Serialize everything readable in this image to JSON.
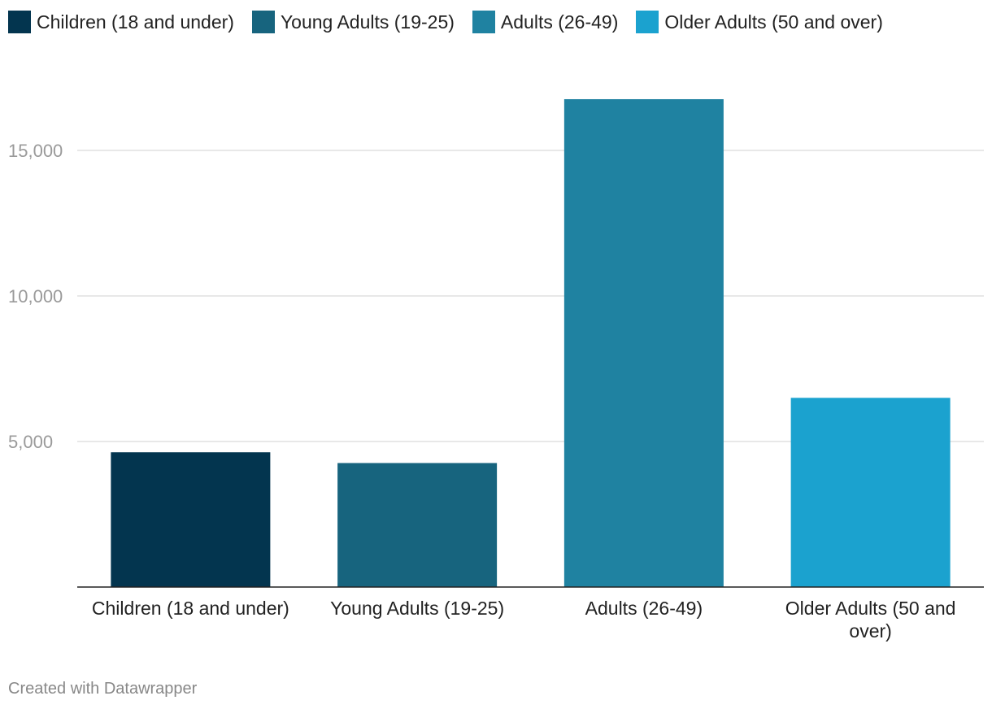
{
  "chart_data": {
    "type": "bar",
    "categories": [
      "Children (18 and under)",
      "Young Adults (19-25)",
      "Adults (26-49)",
      "Older Adults (50 and over)"
    ],
    "category_label_lines": [
      [
        "Children (18 and under)"
      ],
      [
        "Young Adults (19-25)"
      ],
      [
        "Adults (26-49)"
      ],
      [
        "Older Adults (50 and",
        "over)"
      ]
    ],
    "values": [
      4630,
      4260,
      16760,
      6500
    ],
    "colors": [
      "#03354f",
      "#17647e",
      "#1f82a1",
      "#1ba2cf"
    ],
    "ylim": [
      0,
      18000
    ],
    "yticks": [
      5000,
      10000,
      15000
    ],
    "ytick_labels": [
      "5,000",
      "10,000",
      "15,000"
    ],
    "grid": true,
    "legend": {
      "placement": "top-left",
      "entries": [
        "Children (18 and under)",
        "Young Adults (19-25)",
        "Adults (26-49)",
        "Older Adults (50 and over)"
      ]
    }
  },
  "footer": {
    "credit": "Created with Datawrapper"
  }
}
